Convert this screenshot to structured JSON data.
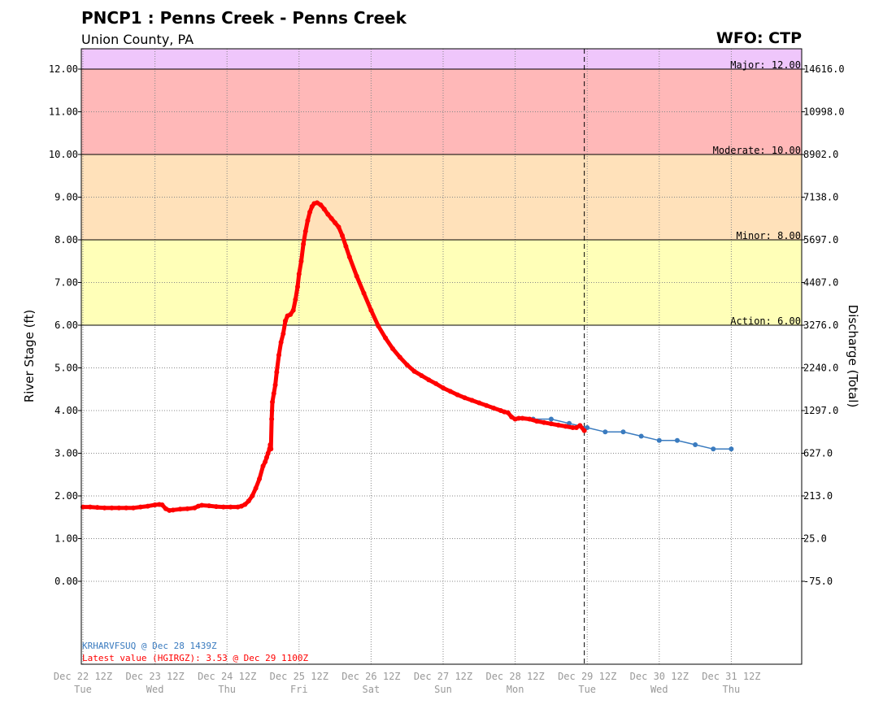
{
  "header": {
    "title": "PNCP1 : Penns Creek - Penns Creek",
    "subtitle": "Union County, PA",
    "wfo": "WFO: CTP"
  },
  "chart_data": {
    "type": "line",
    "y_left_label": "River Stage (ft)",
    "y_right_label": "Discharge (Total)",
    "ylim": [
      -2.0,
      12.5
    ],
    "y_ticks": [
      {
        "stage": 0,
        "label": "0.00",
        "flow": "-75.0"
      },
      {
        "stage": 1,
        "label": "1.00",
        "flow": "25.0"
      },
      {
        "stage": 2,
        "label": "2.00",
        "flow": "213.0"
      },
      {
        "stage": 3,
        "label": "3.00",
        "flow": "627.0"
      },
      {
        "stage": 4,
        "label": "4.00",
        "flow": "1297.0"
      },
      {
        "stage": 5,
        "label": "5.00",
        "flow": "2240.0"
      },
      {
        "stage": 6,
        "label": "6.00",
        "flow": "3276.0"
      },
      {
        "stage": 7,
        "label": "7.00",
        "flow": "4407.0"
      },
      {
        "stage": 8,
        "label": "8.00",
        "flow": "5697.0"
      },
      {
        "stage": 9,
        "label": "9.00",
        "flow": "7138.0"
      },
      {
        "stage": 10,
        "label": "10.00",
        "flow": "8902.0"
      },
      {
        "stage": 11,
        "label": "11.00",
        "flow": "10998.0"
      },
      {
        "stage": 12,
        "label": "12.00",
        "flow": "14616.0"
      }
    ],
    "xlim": [
      0,
      9.82
    ],
    "x_unit": "days since Dec 22 12Z",
    "x_ticks": [
      {
        "pos": 0,
        "date": "Dec 22 12Z",
        "day": "Tue"
      },
      {
        "pos": 1,
        "date": "Dec 23 12Z",
        "day": "Wed"
      },
      {
        "pos": 2,
        "date": "Dec 24 12Z",
        "day": "Thu"
      },
      {
        "pos": 3,
        "date": "Dec 25 12Z",
        "day": "Fri"
      },
      {
        "pos": 4,
        "date": "Dec 26 12Z",
        "day": "Sat"
      },
      {
        "pos": 5,
        "date": "Dec 27 12Z",
        "day": "Sun"
      },
      {
        "pos": 6,
        "date": "Dec 28 12Z",
        "day": "Mon"
      },
      {
        "pos": 7,
        "date": "Dec 29 12Z",
        "day": "Tue"
      },
      {
        "pos": 8,
        "date": "Dec 30 12Z",
        "day": "Wed"
      },
      {
        "pos": 9,
        "date": "Dec 31 12Z",
        "day": "Thu"
      }
    ],
    "flood_categories": [
      {
        "name": "Major",
        "label": "Major: 12.00",
        "from": 12,
        "to": 12.5,
        "color": "#efc6fb"
      },
      {
        "name": "Moderate",
        "label": "Moderate: 10.00",
        "from": 10,
        "to": 12,
        "color": "#ffb8b8"
      },
      {
        "name": "Minor",
        "label": "Minor: 8.00",
        "from": 8,
        "to": 10,
        "color": "#ffe1ba"
      },
      {
        "name": "Action",
        "label": "Action: 6.00",
        "from": 6,
        "to": 8,
        "color": "#ffffb8"
      }
    ],
    "now_marker_x": 6.96,
    "series": [
      {
        "name": "Observed",
        "color": "#ff0000",
        "points": [
          [
            0.0,
            1.74
          ],
          [
            0.1,
            1.74
          ],
          [
            0.2,
            1.73
          ],
          [
            0.3,
            1.72
          ],
          [
            0.4,
            1.72
          ],
          [
            0.5,
            1.72
          ],
          [
            0.6,
            1.72
          ],
          [
            0.7,
            1.72
          ],
          [
            0.8,
            1.74
          ],
          [
            0.9,
            1.76
          ],
          [
            1.0,
            1.79
          ],
          [
            1.06,
            1.8
          ],
          [
            1.1,
            1.79
          ],
          [
            1.15,
            1.7
          ],
          [
            1.2,
            1.66
          ],
          [
            1.25,
            1.67
          ],
          [
            1.35,
            1.69
          ],
          [
            1.45,
            1.7
          ],
          [
            1.55,
            1.72
          ],
          [
            1.6,
            1.76
          ],
          [
            1.65,
            1.78
          ],
          [
            1.75,
            1.77
          ],
          [
            1.85,
            1.75
          ],
          [
            1.95,
            1.74
          ],
          [
            2.05,
            1.74
          ],
          [
            2.15,
            1.74
          ],
          [
            2.2,
            1.76
          ],
          [
            2.25,
            1.8
          ],
          [
            2.3,
            1.88
          ],
          [
            2.35,
            2.0
          ],
          [
            2.4,
            2.18
          ],
          [
            2.45,
            2.4
          ],
          [
            2.5,
            2.7
          ],
          [
            2.53,
            2.8
          ],
          [
            2.55,
            2.9
          ],
          [
            2.57,
            3.0
          ],
          [
            2.59,
            3.1
          ],
          [
            2.6,
            3.2
          ],
          [
            2.61,
            3.1
          ],
          [
            2.62,
            3.8
          ],
          [
            2.63,
            4.2
          ],
          [
            2.65,
            4.4
          ],
          [
            2.67,
            4.6
          ],
          [
            2.69,
            4.9
          ],
          [
            2.72,
            5.3
          ],
          [
            2.75,
            5.6
          ],
          [
            2.78,
            5.8
          ],
          [
            2.81,
            6.1
          ],
          [
            2.84,
            6.22
          ],
          [
            2.88,
            6.25
          ],
          [
            2.92,
            6.35
          ],
          [
            2.95,
            6.6
          ],
          [
            2.98,
            6.9
          ],
          [
            3.0,
            7.2
          ],
          [
            3.03,
            7.5
          ],
          [
            3.06,
            7.9
          ],
          [
            3.09,
            8.2
          ],
          [
            3.12,
            8.45
          ],
          [
            3.15,
            8.65
          ],
          [
            3.18,
            8.78
          ],
          [
            3.21,
            8.85
          ],
          [
            3.25,
            8.87
          ],
          [
            3.3,
            8.82
          ],
          [
            3.35,
            8.72
          ],
          [
            3.4,
            8.6
          ],
          [
            3.45,
            8.5
          ],
          [
            3.5,
            8.4
          ],
          [
            3.55,
            8.3
          ],
          [
            3.6,
            8.1
          ],
          [
            3.65,
            7.85
          ],
          [
            3.7,
            7.6
          ],
          [
            3.8,
            7.15
          ],
          [
            3.9,
            6.75
          ],
          [
            4.0,
            6.35
          ],
          [
            4.1,
            5.98
          ],
          [
            4.2,
            5.7
          ],
          [
            4.3,
            5.45
          ],
          [
            4.4,
            5.25
          ],
          [
            4.5,
            5.07
          ],
          [
            4.6,
            4.92
          ],
          [
            4.7,
            4.82
          ],
          [
            4.8,
            4.72
          ],
          [
            4.9,
            4.63
          ],
          [
            5.0,
            4.53
          ],
          [
            5.1,
            4.45
          ],
          [
            5.2,
            4.37
          ],
          [
            5.3,
            4.3
          ],
          [
            5.4,
            4.24
          ],
          [
            5.5,
            4.18
          ],
          [
            5.6,
            4.12
          ],
          [
            5.7,
            4.06
          ],
          [
            5.8,
            4.0
          ],
          [
            5.85,
            3.97
          ],
          [
            5.9,
            3.95
          ],
          [
            5.95,
            3.85
          ],
          [
            6.0,
            3.8
          ],
          [
            6.05,
            3.82
          ],
          [
            6.1,
            3.82
          ],
          [
            6.2,
            3.8
          ],
          [
            6.3,
            3.75
          ],
          [
            6.4,
            3.72
          ],
          [
            6.5,
            3.69
          ],
          [
            6.6,
            3.66
          ],
          [
            6.7,
            3.63
          ],
          [
            6.8,
            3.6
          ],
          [
            6.85,
            3.6
          ],
          [
            6.9,
            3.65
          ],
          [
            6.96,
            3.53
          ]
        ]
      },
      {
        "name": "Forecast",
        "color": "#3a7bbf",
        "points": [
          [
            6.25,
            3.8
          ],
          [
            6.5,
            3.8
          ],
          [
            6.75,
            3.7
          ],
          [
            7.0,
            3.6
          ],
          [
            7.25,
            3.5
          ],
          [
            7.5,
            3.5
          ],
          [
            7.75,
            3.4
          ],
          [
            8.0,
            3.3
          ],
          [
            8.25,
            3.3
          ],
          [
            8.5,
            3.2
          ],
          [
            8.75,
            3.1
          ],
          [
            9.0,
            3.1
          ]
        ]
      }
    ],
    "annotations": {
      "forecast_source": "KRHARVFSUQ @ Dec 28 1439Z",
      "latest_value": "Latest value (HGIRGZ): 3.53 @ Dec 29 1100Z"
    }
  }
}
